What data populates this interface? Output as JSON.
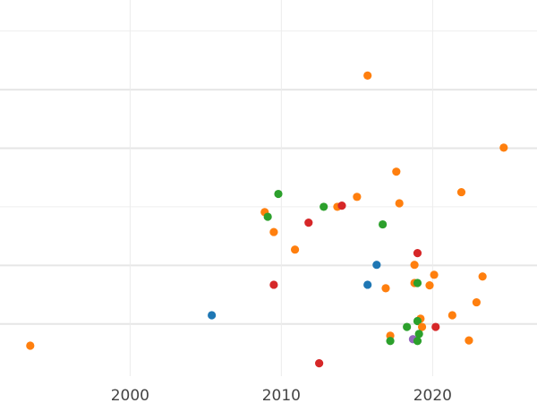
{
  "chart_data": {
    "type": "scatter",
    "title": "",
    "xlabel": "",
    "ylabel": "",
    "xlim": [
      1991.4,
      2026.9
    ],
    "ylim": [
      -0.89,
      5.53
    ],
    "xticks": [
      2000,
      2010,
      2020
    ],
    "xtick_labels": [
      "2000",
      "2010",
      "2020"
    ],
    "ygrid": [
      0,
      1,
      2,
      3,
      4,
      5
    ],
    "grid": true,
    "legend": "none",
    "colors": {
      "blue": "#1f77b4",
      "orange": "#ff7f0e",
      "green": "#2ca02c",
      "red": "#d62728",
      "purple": "#9467bd"
    },
    "points": [
      {
        "x": 1993.4,
        "y": -0.37,
        "c": "orange"
      },
      {
        "x": 2015.7,
        "y": 4.24,
        "c": "orange"
      },
      {
        "x": 2024.7,
        "y": 3.01,
        "c": "orange"
      },
      {
        "x": 2017.6,
        "y": 2.6,
        "c": "orange"
      },
      {
        "x": 2009.8,
        "y": 2.22,
        "c": "green"
      },
      {
        "x": 2015.0,
        "y": 2.17,
        "c": "orange"
      },
      {
        "x": 2021.9,
        "y": 2.25,
        "c": "orange"
      },
      {
        "x": 2012.8,
        "y": 2.0,
        "c": "green"
      },
      {
        "x": 2013.7,
        "y": 2.0,
        "c": "orange"
      },
      {
        "x": 2014.0,
        "y": 2.02,
        "c": "red"
      },
      {
        "x": 2017.8,
        "y": 2.06,
        "c": "orange"
      },
      {
        "x": 2008.9,
        "y": 1.91,
        "c": "orange"
      },
      {
        "x": 2009.1,
        "y": 1.83,
        "c": "green"
      },
      {
        "x": 2011.8,
        "y": 1.73,
        "c": "red"
      },
      {
        "x": 2016.7,
        "y": 1.7,
        "c": "green"
      },
      {
        "x": 2009.5,
        "y": 1.57,
        "c": "orange"
      },
      {
        "x": 2010.9,
        "y": 1.27,
        "c": "orange"
      },
      {
        "x": 2019.0,
        "y": 1.21,
        "c": "red"
      },
      {
        "x": 2016.3,
        "y": 1.01,
        "c": "blue"
      },
      {
        "x": 2018.8,
        "y": 1.01,
        "c": "orange"
      },
      {
        "x": 2020.1,
        "y": 0.84,
        "c": "orange"
      },
      {
        "x": 2023.3,
        "y": 0.81,
        "c": "orange"
      },
      {
        "x": 2009.5,
        "y": 0.67,
        "c": "red"
      },
      {
        "x": 2015.7,
        "y": 0.67,
        "c": "blue"
      },
      {
        "x": 2018.8,
        "y": 0.7,
        "c": "orange"
      },
      {
        "x": 2019.0,
        "y": 0.7,
        "c": "green"
      },
      {
        "x": 2016.9,
        "y": 0.61,
        "c": "orange"
      },
      {
        "x": 2019.8,
        "y": 0.66,
        "c": "orange"
      },
      {
        "x": 2022.9,
        "y": 0.37,
        "c": "orange"
      },
      {
        "x": 2005.4,
        "y": 0.15,
        "c": "blue"
      },
      {
        "x": 2021.3,
        "y": 0.15,
        "c": "orange"
      },
      {
        "x": 2019.2,
        "y": 0.09,
        "c": "orange"
      },
      {
        "x": 2019.0,
        "y": 0.05,
        "c": "green"
      },
      {
        "x": 2018.3,
        "y": -0.05,
        "c": "green"
      },
      {
        "x": 2019.3,
        "y": -0.05,
        "c": "orange"
      },
      {
        "x": 2020.2,
        "y": -0.05,
        "c": "red"
      },
      {
        "x": 2017.2,
        "y": -0.2,
        "c": "orange"
      },
      {
        "x": 2019.1,
        "y": -0.17,
        "c": "green"
      },
      {
        "x": 2017.2,
        "y": -0.29,
        "c": "green"
      },
      {
        "x": 2018.7,
        "y": -0.26,
        "c": "purple"
      },
      {
        "x": 2019.0,
        "y": -0.29,
        "c": "green"
      },
      {
        "x": 2022.4,
        "y": -0.28,
        "c": "orange"
      },
      {
        "x": 2012.5,
        "y": -0.67,
        "c": "red"
      }
    ]
  }
}
